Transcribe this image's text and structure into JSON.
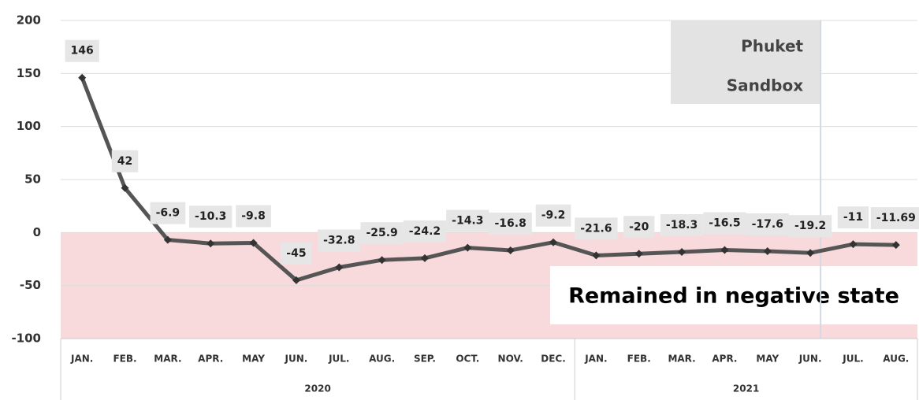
{
  "chart_data": {
    "type": "line",
    "categories": [
      "JAN.",
      "FEB.",
      "MAR.",
      "APR.",
      "MAY",
      "JUN.",
      "JUL.",
      "AUG.",
      "SEP.",
      "OCT.",
      "NOV.",
      "DEC.",
      "JAN.",
      "FEB.",
      "MAR.",
      "APR.",
      "MAY",
      "JUN.",
      "JUL.",
      "AUG."
    ],
    "groups": [
      {
        "label": "2020",
        "count": 12
      },
      {
        "label": "2021",
        "count": 8
      }
    ],
    "values": [
      146,
      42,
      -6.9,
      -10.3,
      -9.8,
      -45,
      -32.8,
      -25.9,
      -24.2,
      -14.3,
      -16.8,
      -9.2,
      -21.6,
      -20,
      -18.3,
      -16.5,
      -17.6,
      -19.2,
      -11,
      -11.69
    ],
    "color": "#555555",
    "ylim": [
      -100,
      200
    ],
    "yticks": [
      -100,
      -50,
      0,
      50,
      100,
      150,
      200
    ],
    "grid": true,
    "shade": {
      "from": -100,
      "to": 0,
      "color": "#f8d9dc",
      "text": "Remained in negative state"
    },
    "marker_line": {
      "index": 17,
      "text": [
        "Phuket",
        "Sandbox"
      ]
    }
  }
}
